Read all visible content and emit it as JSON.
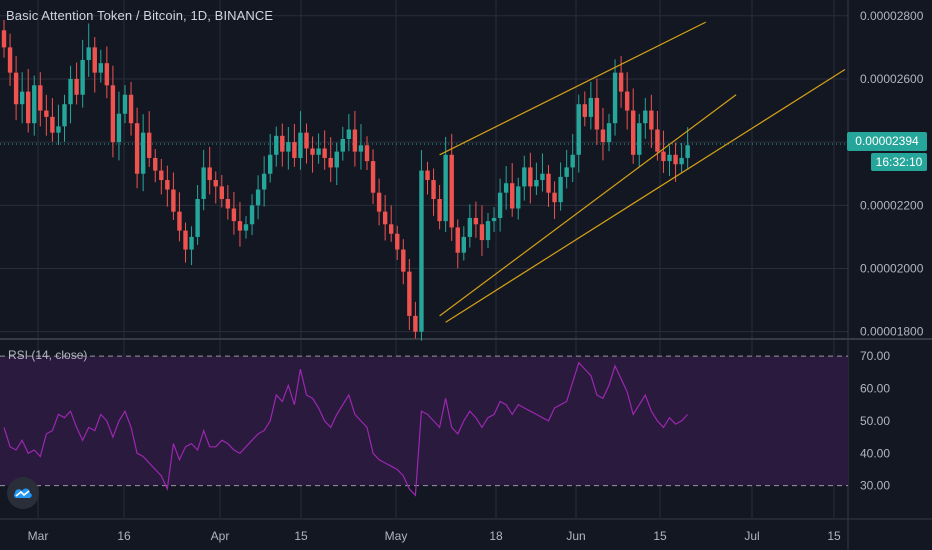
{
  "header": {
    "title": "Basic Attention Token / Bitcoin, 1D, BINANCE"
  },
  "price_badge": {
    "price": "0.00002394",
    "countdown": "16:32:10"
  },
  "rsi_panel": {
    "label": "RSI (14, close)"
  },
  "logo": {
    "icon": "tradingview-cloud-icon"
  },
  "colors": {
    "bg": "#131722",
    "grid": "#2a2e39",
    "up": "#26a69a",
    "down": "#ef5350",
    "trend": "#d4a017",
    "rsi": "#9c27b0",
    "rsi_band": "#2a1a3e",
    "text": "#b2b5be"
  },
  "chart_data": [
    {
      "type": "candlestick",
      "title": "Basic Attention Token / Bitcoin, 1D, BINANCE",
      "ylim": [
        1.78e-05,
        2.85e-05
      ],
      "y_ticks": [
        "0.00001800",
        "0.00002000",
        "0.00002200",
        "0.00002400",
        "0.00002600",
        "0.00002800"
      ],
      "x_ticks": [
        "Mar",
        "16",
        "Apr",
        "15",
        "May",
        "18",
        "Jun",
        "15",
        "Jul",
        "15"
      ],
      "grid": true,
      "last_price": 2.394e-05,
      "close": [
        2.7e-05,
        2.62e-05,
        2.52e-05,
        2.56e-05,
        2.46e-05,
        2.58e-05,
        2.5e-05,
        2.48e-05,
        2.43e-05,
        2.45e-05,
        2.52e-05,
        2.6e-05,
        2.55e-05,
        2.66e-05,
        2.7e-05,
        2.62e-05,
        2.65e-05,
        2.58e-05,
        2.4e-05,
        2.49e-05,
        2.55e-05,
        2.46e-05,
        2.3e-05,
        2.43e-05,
        2.35e-05,
        2.31e-05,
        2.28e-05,
        2.25e-05,
        2.18e-05,
        2.12e-05,
        2.06e-05,
        2.1e-05,
        2.22e-05,
        2.32e-05,
        2.28e-05,
        2.26e-05,
        2.22e-05,
        2.19e-05,
        2.15e-05,
        2.12e-05,
        2.14e-05,
        2.2e-05,
        2.25e-05,
        2.3e-05,
        2.36e-05,
        2.42e-05,
        2.37e-05,
        2.4e-05,
        2.35e-05,
        2.43e-05,
        2.38e-05,
        2.36e-05,
        2.38e-05,
        2.35e-05,
        2.32e-05,
        2.37e-05,
        2.41e-05,
        2.44e-05,
        2.37e-05,
        2.39e-05,
        2.34e-05,
        2.24e-05,
        2.18e-05,
        2.14e-05,
        2.11e-05,
        2.06e-05,
        1.99e-05,
        1.85e-05,
        1.8e-05,
        2.31e-05,
        2.28e-05,
        2.22e-05,
        2.15e-05,
        2.36e-05,
        2.13e-05,
        2.05e-05,
        2.1e-05,
        2.16e-05,
        2.14e-05,
        2.09e-05,
        2.15e-05,
        2.16e-05,
        2.24e-05,
        2.27e-05,
        2.19e-05,
        2.26e-05,
        2.32e-05,
        2.26e-05,
        2.28e-05,
        2.3e-05,
        2.24e-05,
        2.21e-05,
        2.29e-05,
        2.32e-05,
        2.36e-05,
        2.52e-05,
        2.48e-05,
        2.54e-05,
        2.44e-05,
        2.4e-05,
        2.46e-05,
        2.62e-05,
        2.56e-05,
        2.5e-05,
        2.36e-05,
        2.46e-05,
        2.5e-05,
        2.44e-05,
        2.37e-05,
        2.34e-05,
        2.36e-05,
        2.33e-05,
        2.35e-05,
        2.39e-05
      ]
    },
    {
      "type": "line",
      "title": "RSI (14, close)",
      "ylim": [
        20,
        75
      ],
      "y_ticks": [
        "30.00",
        "40.00",
        "50.00",
        "60.00",
        "70.00"
      ],
      "bands": [
        30,
        70
      ],
      "values": [
        48,
        42,
        41,
        44,
        40,
        41,
        39,
        46,
        47,
        52,
        51,
        53,
        48,
        44,
        48,
        47,
        52,
        50,
        45,
        50,
        53,
        48,
        40,
        39,
        37,
        35,
        33,
        29,
        43,
        38,
        42,
        43,
        41,
        47,
        42,
        42,
        44,
        43,
        41,
        40,
        42,
        44,
        46,
        47,
        50,
        58,
        56,
        61,
        55,
        66,
        58,
        57,
        54,
        50,
        48,
        52,
        55,
        58,
        52,
        50,
        48,
        40,
        38,
        37,
        36,
        35,
        33,
        29,
        27,
        53,
        52,
        50,
        48,
        57,
        48,
        46,
        50,
        53,
        51,
        48,
        51,
        52,
        56,
        55,
        52,
        55,
        54,
        53,
        52,
        51,
        50,
        54,
        55,
        56,
        62,
        68,
        66,
        64,
        58,
        57,
        61,
        67,
        63,
        59,
        52,
        55,
        58,
        53,
        50,
        48,
        51,
        49,
        50,
        52
      ]
    }
  ]
}
